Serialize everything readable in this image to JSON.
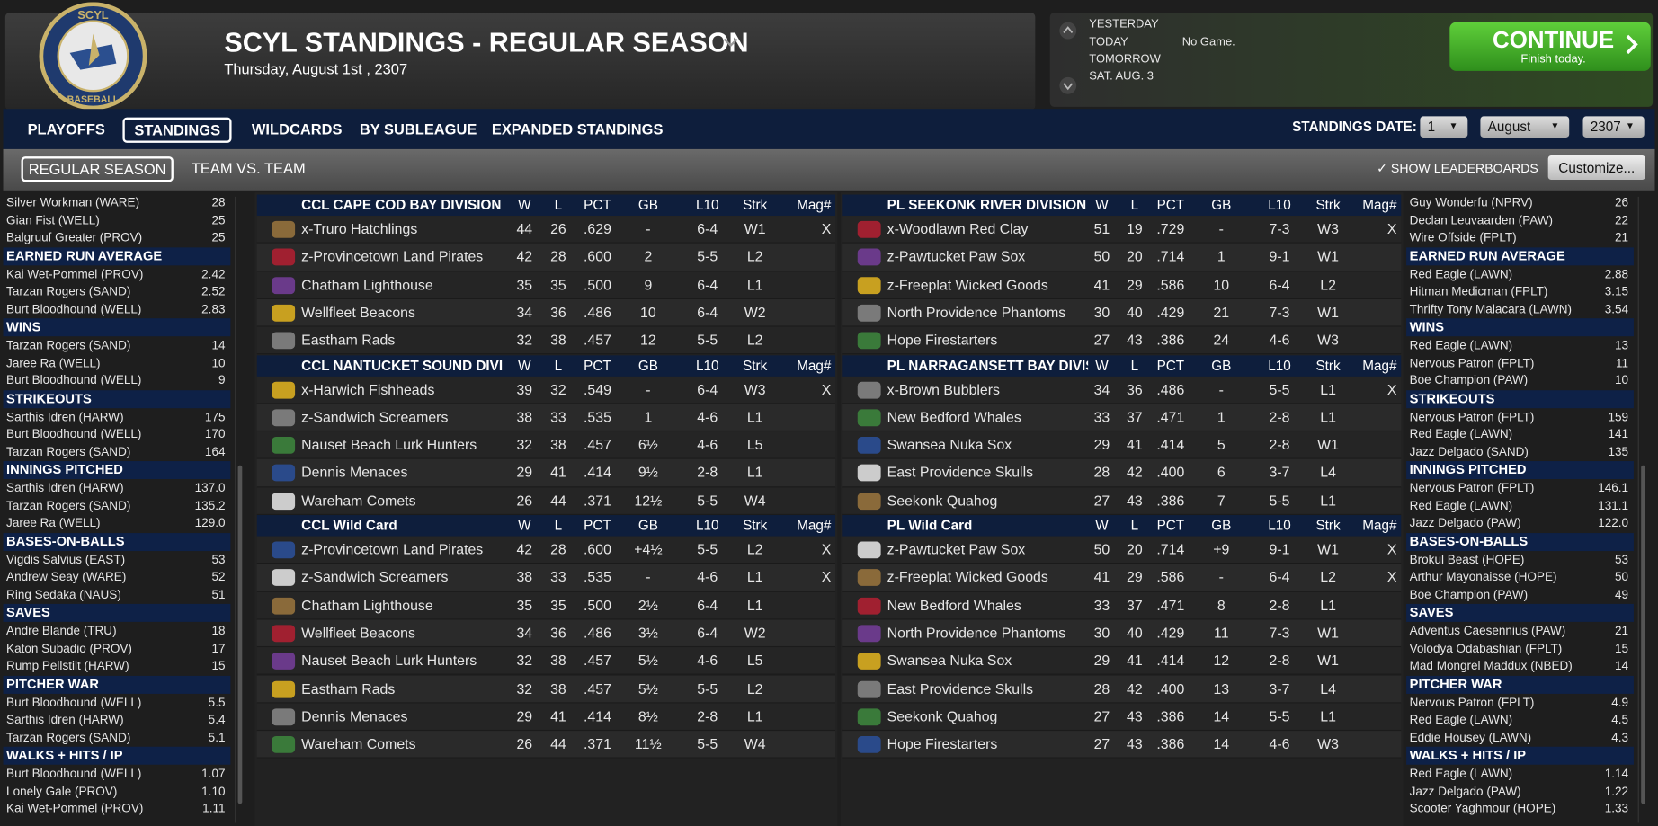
{
  "header": {
    "logo": {
      "top": "SCYL",
      "bottom": "BASEBALL"
    },
    "title": "SCYL STANDINGS - REGULAR SEASON",
    "date": "Thursday, August 1st , 2307"
  },
  "schedule": {
    "days": [
      "YESTERDAY",
      "TODAY",
      "TOMORROW",
      "SAT. AUG. 3"
    ],
    "today_info": "No Game."
  },
  "continue_button": {
    "label": "CONTINUE",
    "sublabel": "Finish today."
  },
  "tabs": [
    "PLAYOFFS",
    "STANDINGS",
    "WILDCARDS",
    "BY SUBLEAGUE",
    "EXPANDED STANDINGS"
  ],
  "active_tab": 1,
  "standings_date": {
    "label": "STANDINGS DATE:",
    "day": "1",
    "month": "August",
    "year": "2307"
  },
  "subtabs": [
    "REGULAR SEASON",
    "TEAM VS. TEAM"
  ],
  "active_subtab": 0,
  "show_leaderboards": "SHOW LEADERBOARDS",
  "customize": "Customize...",
  "leaders_left": [
    {
      "rows": [
        [
          "Silver Workman (WARE)",
          "28"
        ],
        [
          "Gian Fist (WELL)",
          "25"
        ],
        [
          "Balgruuf Greater (PROV)",
          "25"
        ]
      ]
    },
    {
      "title": "EARNED RUN AVERAGE",
      "rows": [
        [
          "Kai Wet-Pommel (PROV)",
          "2.42"
        ],
        [
          "Tarzan Rogers (SAND)",
          "2.52"
        ],
        [
          "Burt Bloodhound (WELL)",
          "2.83"
        ]
      ]
    },
    {
      "title": "WINS",
      "rows": [
        [
          "Tarzan Rogers (SAND)",
          "14"
        ],
        [
          "Jaree Ra (WELL)",
          "10"
        ],
        [
          "Burt Bloodhound (WELL)",
          "9"
        ]
      ]
    },
    {
      "title": "STRIKEOUTS",
      "rows": [
        [
          "Sarthis Idren (HARW)",
          "175"
        ],
        [
          "Burt Bloodhound (WELL)",
          "170"
        ],
        [
          "Tarzan Rogers (SAND)",
          "164"
        ]
      ]
    },
    {
      "title": "INNINGS PITCHED",
      "rows": [
        [
          "Sarthis Idren (HARW)",
          "137.0"
        ],
        [
          "Tarzan Rogers (SAND)",
          "135.2"
        ],
        [
          "Jaree Ra (WELL)",
          "129.0"
        ]
      ]
    },
    {
      "title": "BASES-ON-BALLS",
      "rows": [
        [
          "Vigdis Salvius (EAST)",
          "53"
        ],
        [
          "Andrew Seay (WARE)",
          "52"
        ],
        [
          "Ring Sedaka (NAUS)",
          "51"
        ]
      ]
    },
    {
      "title": "SAVES",
      "rows": [
        [
          "Andre Blande (TRU)",
          "18"
        ],
        [
          "Katon Subadio (PROV)",
          "17"
        ],
        [
          "Rump Pellstilt (HARW)",
          "15"
        ]
      ]
    },
    {
      "title": "PITCHER WAR",
      "rows": [
        [
          "Burt Bloodhound (WELL)",
          "5.5"
        ],
        [
          "Sarthis Idren (HARW)",
          "5.4"
        ],
        [
          "Tarzan Rogers (SAND)",
          "5.1"
        ]
      ]
    },
    {
      "title": "WALKS + HITS / IP",
      "rows": [
        [
          "Burt Bloodhound (WELL)",
          "1.07"
        ],
        [
          "Lonely Gale (PROV)",
          "1.10"
        ],
        [
          "Kai Wet-Pommel (PROV)",
          "1.11"
        ]
      ]
    }
  ],
  "leaders_right": [
    {
      "rows": [
        [
          "Guy Wonderfu (NPRV)",
          "26"
        ],
        [
          "Declan Leuvaarden (PAW)",
          "22"
        ],
        [
          "Wire Offside (FPLT)",
          "21"
        ]
      ]
    },
    {
      "title": "EARNED RUN AVERAGE",
      "rows": [
        [
          "Red Eagle (LAWN)",
          "2.88"
        ],
        [
          "Hitman Medicman (FPLT)",
          "3.15"
        ],
        [
          "Thrifty Tony Malacara (LAWN)",
          "3.54"
        ]
      ]
    },
    {
      "title": "WINS",
      "rows": [
        [
          "Red Eagle (LAWN)",
          "13"
        ],
        [
          "Nervous Patron (FPLT)",
          "11"
        ],
        [
          "Boe Champion (PAW)",
          "10"
        ]
      ]
    },
    {
      "title": "STRIKEOUTS",
      "rows": [
        [
          "Nervous Patron (FPLT)",
          "159"
        ],
        [
          "Red Eagle (LAWN)",
          "141"
        ],
        [
          "Jazz Delgado (SAND)",
          "135"
        ]
      ]
    },
    {
      "title": "INNINGS PITCHED",
      "rows": [
        [
          "Nervous Patron (FPLT)",
          "146.1"
        ],
        [
          "Red Eagle (LAWN)",
          "131.1"
        ],
        [
          "Jazz Delgado (PAW)",
          "122.0"
        ]
      ]
    },
    {
      "title": "BASES-ON-BALLS",
      "rows": [
        [
          "Brokul Beast (HOPE)",
          "53"
        ],
        [
          "Arthur Mayonaisse (HOPE)",
          "50"
        ],
        [
          "Boe Champion (PAW)",
          "49"
        ]
      ]
    },
    {
      "title": "SAVES",
      "rows": [
        [
          "Adventus Caesennius (PAW)",
          "21"
        ],
        [
          "Volodya Odabashian (FPLT)",
          "15"
        ],
        [
          "Mad Mongrel Maddux (NBED)",
          "14"
        ]
      ]
    },
    {
      "title": "PITCHER WAR",
      "rows": [
        [
          "Nervous Patron (FPLT)",
          "4.9"
        ],
        [
          "Red Eagle (LAWN)",
          "4.5"
        ],
        [
          "Eddie Housey (LAWN)",
          "4.3"
        ]
      ]
    },
    {
      "title": "WALKS + HITS / IP",
      "rows": [
        [
          "Red Eagle (LAWN)",
          "1.14"
        ],
        [
          "Jazz Delgado (PAW)",
          "1.22"
        ],
        [
          "Scooter Yaghmour (HOPE)",
          "1.33"
        ]
      ]
    }
  ],
  "standings": [
    [
      {
        "title": "CCL CAPE COD BAY DIVISION",
        "headers": [
          "W",
          "L",
          "PCT",
          "GB",
          "L10",
          "Strk",
          "Mag#"
        ],
        "rows": [
          [
            "x-Truro Hatchlings",
            "44",
            "26",
            ".629",
            "-",
            "6-4",
            "W1",
            "X"
          ],
          [
            "z-Provincetown Land Pirates",
            "42",
            "28",
            ".600",
            "2",
            "5-5",
            "L2",
            null
          ],
          [
            "Chatham Lighthouse",
            "35",
            "35",
            ".500",
            "9",
            "6-4",
            "L1",
            null
          ],
          [
            "Wellfleet Beacons",
            "34",
            "36",
            ".486",
            "10",
            "6-4",
            "W2",
            null
          ],
          [
            "Eastham Rads",
            "32",
            "38",
            ".457",
            "12",
            "5-5",
            "L2",
            null
          ]
        ]
      },
      {
        "title": "CCL NANTUCKET SOUND DIVISION",
        "headers": [
          "W",
          "L",
          "PCT",
          "GB",
          "L10",
          "Strk",
          "Mag#"
        ],
        "rows": [
          [
            "x-Harwich Fishheads",
            "39",
            "32",
            ".549",
            "-",
            "6-4",
            "W3",
            "X"
          ],
          [
            "z-Sandwich Screamers",
            "38",
            "33",
            ".535",
            "1",
            "4-6",
            "L1",
            null
          ],
          [
            "Nauset Beach Lurk Hunters",
            "32",
            "38",
            ".457",
            "6½",
            "4-6",
            "L5",
            null
          ],
          [
            "Dennis Menaces",
            "29",
            "41",
            ".414",
            "9½",
            "2-8",
            "L1",
            null
          ],
          [
            "Wareham Comets",
            "26",
            "44",
            ".371",
            "12½",
            "5-5",
            "W4",
            null
          ]
        ]
      },
      {
        "title": "CCL  Wild Card",
        "headers": [
          "W",
          "L",
          "PCT",
          "GB",
          "L10",
          "Strk",
          "Mag#"
        ],
        "rows": [
          [
            "z-Provincetown Land Pirates",
            "42",
            "28",
            ".600",
            "+4½",
            "5-5",
            "L2",
            "X"
          ],
          [
            "z-Sandwich Screamers",
            "38",
            "33",
            ".535",
            "-",
            "4-6",
            "L1",
            "X"
          ],
          [
            "Chatham Lighthouse",
            "35",
            "35",
            ".500",
            "2½",
            "6-4",
            "L1",
            null
          ],
          [
            "Wellfleet Beacons",
            "34",
            "36",
            ".486",
            "3½",
            "6-4",
            "W2",
            null
          ],
          [
            "Nauset Beach Lurk Hunters",
            "32",
            "38",
            ".457",
            "5½",
            "4-6",
            "L5",
            null
          ],
          [
            "Eastham Rads",
            "32",
            "38",
            ".457",
            "5½",
            "5-5",
            "L2",
            null
          ],
          [
            "Dennis Menaces",
            "29",
            "41",
            ".414",
            "8½",
            "2-8",
            "L1",
            null
          ],
          [
            "Wareham Comets",
            "26",
            "44",
            ".371",
            "11½",
            "5-5",
            "W4",
            null
          ]
        ]
      }
    ],
    [
      {
        "title": "PL SEEKONK RIVER DIVISION",
        "headers": [
          "W",
          "L",
          "PCT",
          "GB",
          "L10",
          "Strk",
          "Mag#"
        ],
        "rows": [
          [
            "x-Woodlawn Red Clay",
            "51",
            "19",
            ".729",
            "-",
            "7-3",
            "W3",
            "X"
          ],
          [
            "z-Pawtucket Paw Sox",
            "50",
            "20",
            ".714",
            "1",
            "9-1",
            "W1",
            null
          ],
          [
            "z-Freeplat Wicked Goods",
            "41",
            "29",
            ".586",
            "10",
            "6-4",
            "L2",
            null
          ],
          [
            "North Providence Phantoms",
            "30",
            "40",
            ".429",
            "21",
            "7-3",
            "W1",
            null
          ],
          [
            "Hope Firestarters",
            "27",
            "43",
            ".386",
            "24",
            "4-6",
            "W3",
            null
          ]
        ]
      },
      {
        "title": "PL NARRAGANSETT BAY DIVISION",
        "headers": [
          "W",
          "L",
          "PCT",
          "GB",
          "L10",
          "Strk",
          "Mag#"
        ],
        "rows": [
          [
            "x-Brown Bubblers",
            "34",
            "36",
            ".486",
            "-",
            "5-5",
            "L1",
            "X"
          ],
          [
            "New Bedford Whales",
            "33",
            "37",
            ".471",
            "1",
            "2-8",
            "L1",
            null
          ],
          [
            "Swansea Nuka Sox",
            "29",
            "41",
            ".414",
            "5",
            "2-8",
            "W1",
            null
          ],
          [
            "East Providence Skulls",
            "28",
            "42",
            ".400",
            "6",
            "3-7",
            "L4",
            null
          ],
          [
            "Seekonk Quahog",
            "27",
            "43",
            ".386",
            "7",
            "5-5",
            "L1",
            null
          ]
        ]
      },
      {
        "title": "PL  Wild Card",
        "headers": [
          "W",
          "L",
          "PCT",
          "GB",
          "L10",
          "Strk",
          "Mag#"
        ],
        "rows": [
          [
            "z-Pawtucket Paw Sox",
            "50",
            "20",
            ".714",
            "+9",
            "9-1",
            "W1",
            "X"
          ],
          [
            "z-Freeplat Wicked Goods",
            "41",
            "29",
            ".586",
            "-",
            "6-4",
            "L2",
            "X"
          ],
          [
            "New Bedford Whales",
            "33",
            "37",
            ".471",
            "8",
            "2-8",
            "L1",
            null
          ],
          [
            "North Providence Phantoms",
            "30",
            "40",
            ".429",
            "11",
            "7-3",
            "W1",
            null
          ],
          [
            "Swansea Nuka Sox",
            "29",
            "41",
            ".414",
            "12",
            "2-8",
            "W1",
            null
          ],
          [
            "East Providence Skulls",
            "28",
            "42",
            ".400",
            "13",
            "3-7",
            "L4",
            null
          ],
          [
            "Seekonk Quahog",
            "27",
            "43",
            ".386",
            "14",
            "5-5",
            "L1",
            null
          ],
          [
            "Hope Firestarters",
            "27",
            "43",
            ".386",
            "14",
            "4-6",
            "W3",
            null
          ]
        ]
      }
    ]
  ]
}
